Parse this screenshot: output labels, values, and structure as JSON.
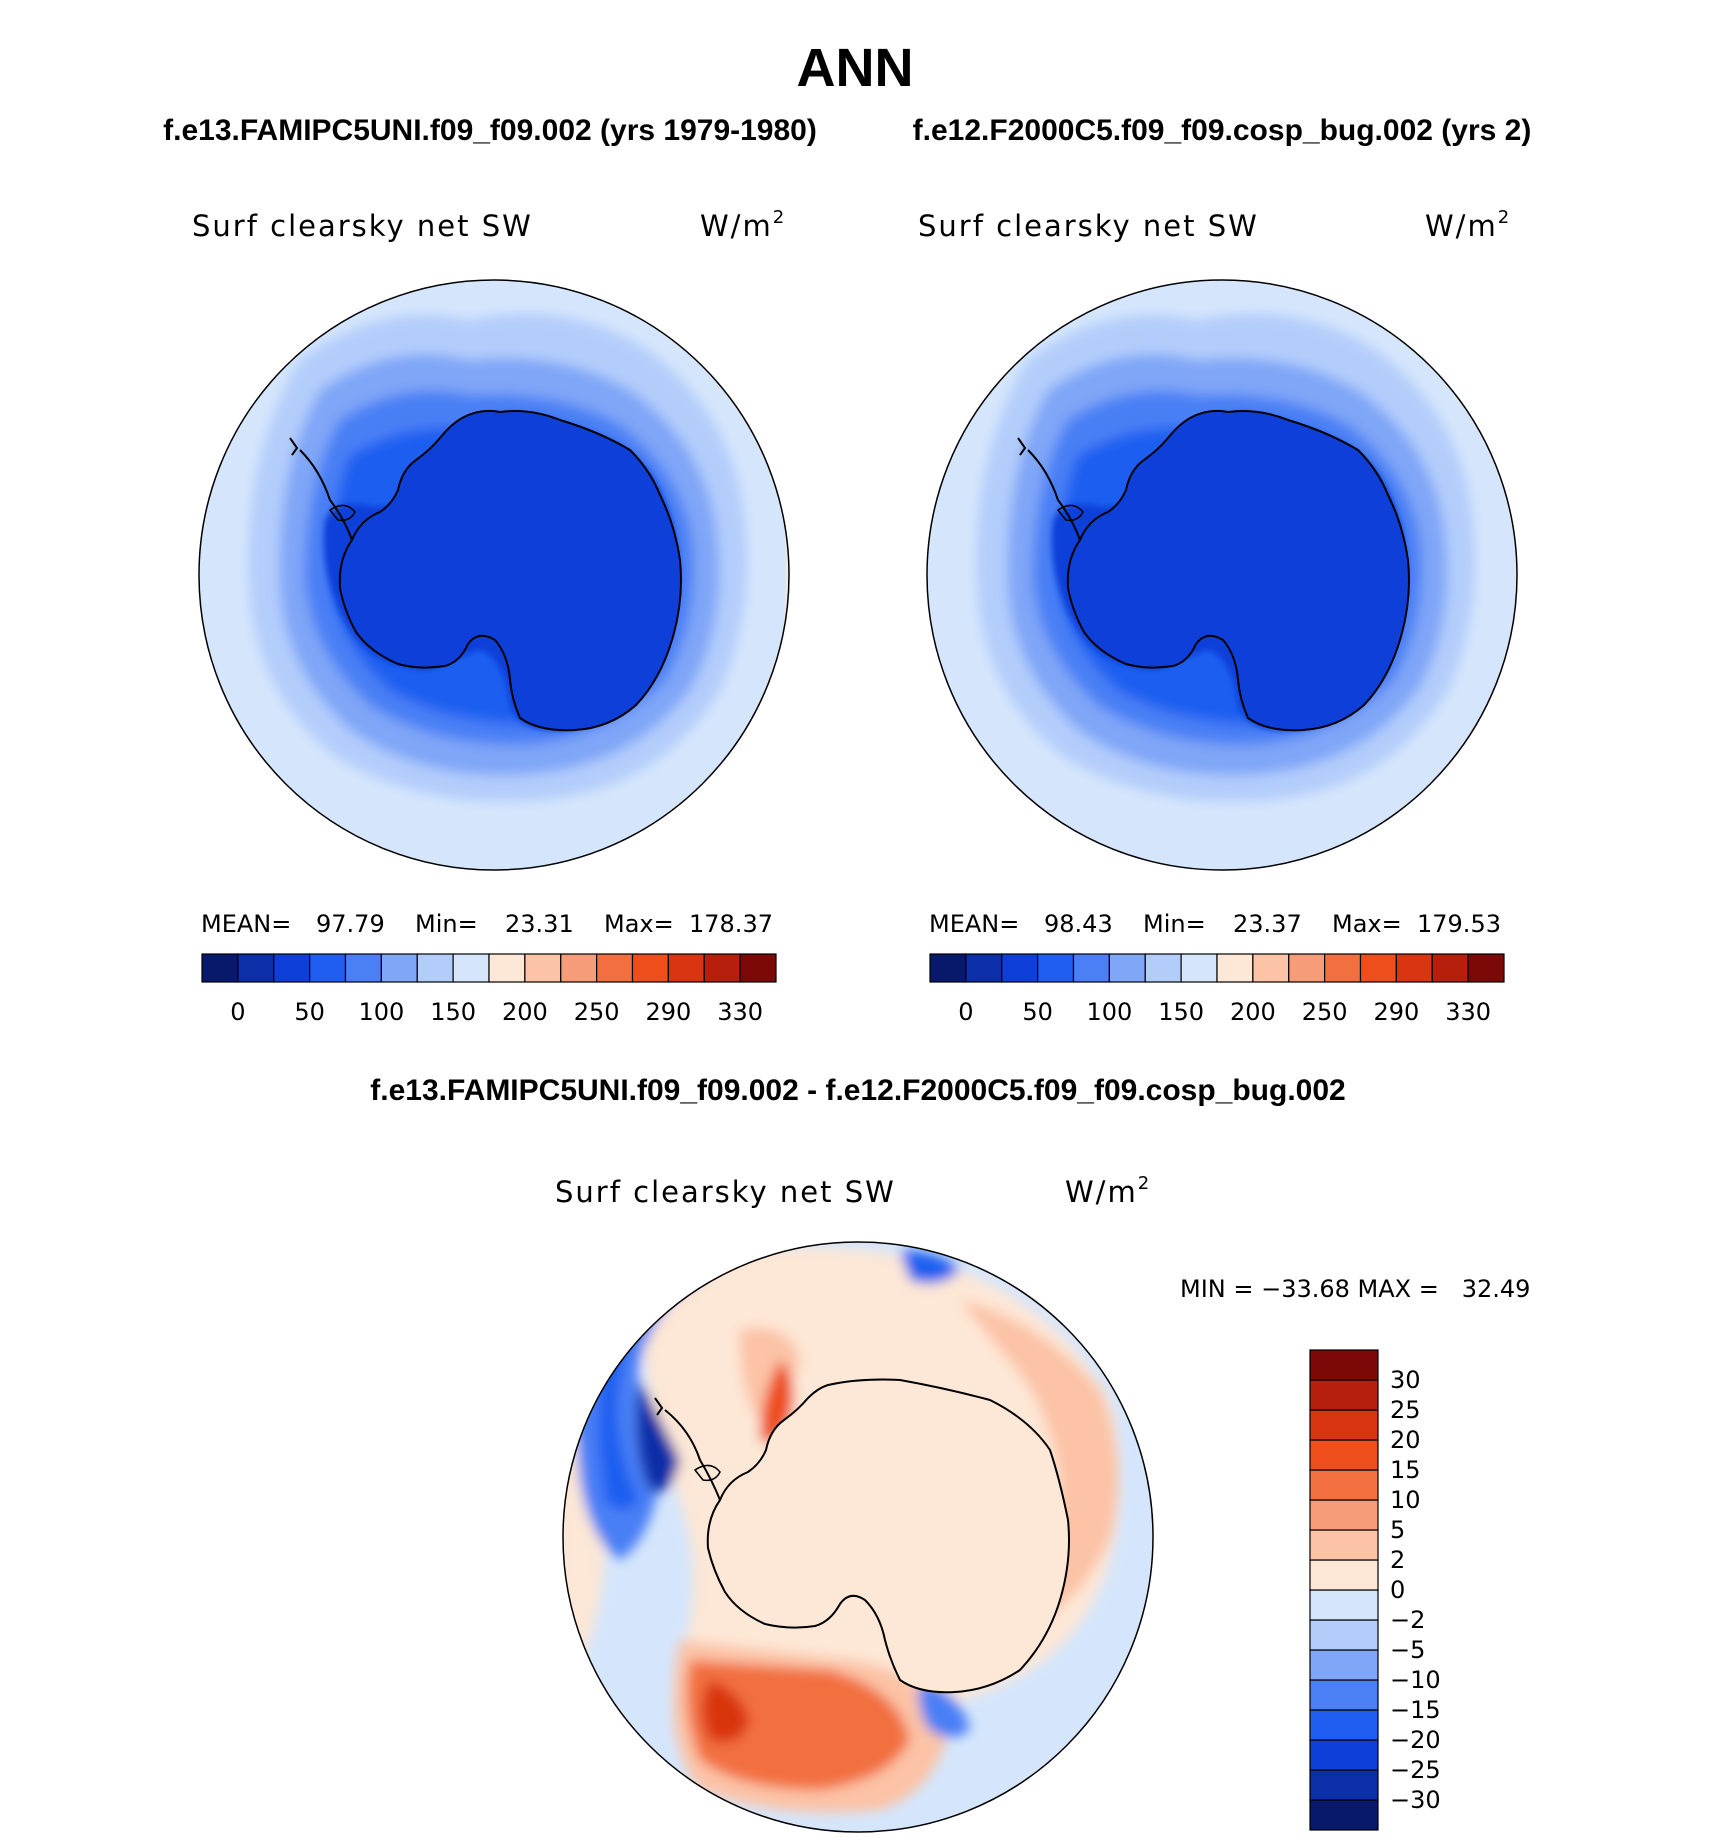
{
  "figure": {
    "title": "ANN",
    "subtitle_left": "f.e13.FAMIPC5UNI.f09_f09.002 (yrs 1979-1980)",
    "subtitle_right": "f.e12.F2000C5.f09_f09.cosp_bug.002 (yrs 2)",
    "diff_title": "f.e13.FAMIPC5UNI.f09_f09.002 - f.e12.F2000C5.f09_f09.cosp_bug.002"
  },
  "colors": {
    "abs_palette": [
      "#08196b",
      "#0a2fa8",
      "#0e40d9",
      "#1f5ef0",
      "#4a7ff5",
      "#7fa6f7",
      "#b3cdfb",
      "#d5e6fc",
      "#fde7d6",
      "#fcc3a6",
      "#f79c79",
      "#f2703f",
      "#ee4e1c",
      "#d93510",
      "#b51f0b",
      "#7d0808"
    ],
    "diff_palette": [
      "#08196b",
      "#0a2fa8",
      "#0e40d9",
      "#1f5ef0",
      "#4a7ff5",
      "#7fa6f7",
      "#b3cdfb",
      "#d5e6fc",
      "#fde7d6",
      "#fcc3a6",
      "#f79c79",
      "#f2703f",
      "#ee4e1c",
      "#d93510",
      "#b51f0b",
      "#7d0808"
    ]
  },
  "chart_data": [
    {
      "type": "heatmap",
      "projection": "south-polar-stereographic",
      "variable": "Surf clearsky net SW",
      "units_base": "W/m",
      "units_exp": "2",
      "stats": {
        "mean_label": "MEAN=",
        "mean": "97.79",
        "min_label": "Min=",
        "min": "23.31",
        "max_label": "Max=",
        "max": "178.37"
      },
      "colorbar": {
        "orientation": "horizontal",
        "tick_labels": [
          "0",
          "50",
          "100",
          "150",
          "200",
          "250",
          "290",
          "330"
        ]
      }
    },
    {
      "type": "heatmap",
      "projection": "south-polar-stereographic",
      "variable": "Surf clearsky net SW",
      "units_base": "W/m",
      "units_exp": "2",
      "stats": {
        "mean_label": "MEAN=",
        "mean": "98.43",
        "min_label": "Min=",
        "min": "23.37",
        "max_label": "Max=",
        "max": "179.53"
      },
      "colorbar": {
        "orientation": "horizontal",
        "tick_labels": [
          "0",
          "50",
          "100",
          "150",
          "200",
          "250",
          "290",
          "330"
        ]
      }
    },
    {
      "type": "heatmap",
      "projection": "south-polar-stereographic",
      "variable": "Surf clearsky net SW",
      "units_base": "W/m",
      "units_exp": "2",
      "stats": {
        "text": "MIN = −33.68 MAX =   32.49"
      },
      "colorbar": {
        "orientation": "vertical",
        "tick_labels": [
          "30",
          "25",
          "20",
          "15",
          "10",
          "5",
          "2",
          "0",
          "−2",
          "−5",
          "−10",
          "−15",
          "−20",
          "−25",
          "−30"
        ]
      }
    }
  ]
}
